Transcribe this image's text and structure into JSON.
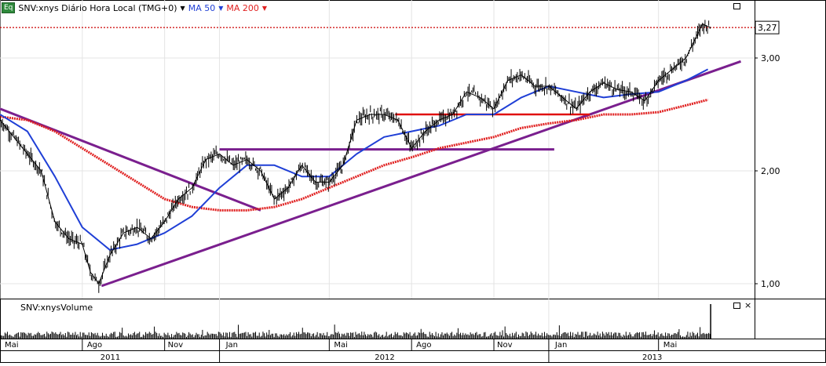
{
  "header": {
    "badge": "Eq",
    "symbol_label": "SNV:xnys Diário Hora Local (TMG+0)",
    "ma50_label": "MA 50",
    "ma200_label": "MA 200"
  },
  "price_tag": "3,27",
  "volume_panel": {
    "title": "SNV:xnysVolume"
  },
  "colors": {
    "ma50": "#1f3fd6",
    "ma200": "#e02020",
    "trendline": "#7a1f8e",
    "resistance": "#e01010",
    "last_price_line": "#cc0000"
  },
  "chart_data": {
    "type": "line",
    "title": "SNV:xnys Diário Hora Local (TMG+0)",
    "x_tick_labels": [
      "Mai",
      "Ago",
      "Nov",
      "Jan",
      "Mai",
      "Ago",
      "Nov",
      "Jan",
      "Mai"
    ],
    "year_labels": [
      "2011",
      "2012",
      "2013"
    ],
    "y_tick_labels": [
      "1,00",
      "2,00",
      "3,00"
    ],
    "y_ticks": [
      1.0,
      2.0,
      3.0
    ],
    "ylim": [
      0.95,
      3.5
    ],
    "x_range_months": [
      0,
      27.5
    ],
    "last_price": 3.27,
    "series": [
      {
        "name": "SNV:xnys",
        "x": [
          0,
          0.5,
          1,
          1.5,
          2,
          2.5,
          3,
          3.3,
          3.6,
          4,
          4.5,
          5,
          5.5,
          6,
          6.5,
          7,
          7.5,
          8,
          8.5,
          9,
          9.5,
          10,
          10.5,
          11,
          11.5,
          12,
          12.5,
          13,
          13.5,
          14,
          14.5,
          15,
          15.5,
          16,
          16.5,
          17,
          17.5,
          18,
          18.5,
          19,
          19.5,
          20,
          20.5,
          21,
          21.5,
          22,
          22.5,
          23,
          23.5,
          24,
          24.5,
          25,
          25.3,
          25.6,
          25.9
        ],
        "values": [
          2.45,
          2.3,
          2.15,
          2.0,
          1.55,
          1.4,
          1.35,
          1.1,
          1.0,
          1.25,
          1.45,
          1.5,
          1.4,
          1.55,
          1.75,
          1.85,
          2.1,
          2.15,
          2.05,
          2.1,
          2.0,
          1.75,
          1.85,
          2.05,
          1.9,
          1.9,
          2.05,
          2.45,
          2.5,
          2.5,
          2.45,
          2.2,
          2.35,
          2.45,
          2.5,
          2.7,
          2.65,
          2.55,
          2.8,
          2.85,
          2.75,
          2.75,
          2.65,
          2.55,
          2.7,
          2.78,
          2.72,
          2.7,
          2.62,
          2.8,
          2.9,
          3.0,
          3.15,
          3.3,
          3.27
        ]
      },
      {
        "name": "MA 50",
        "x": [
          0,
          1,
          2,
          3,
          4,
          5,
          6,
          7,
          8,
          9,
          10,
          11,
          12,
          13,
          14,
          15,
          16,
          17,
          18,
          19,
          20,
          21,
          22,
          23,
          24,
          25,
          25.8
        ],
        "values": [
          2.5,
          2.35,
          1.95,
          1.5,
          1.3,
          1.35,
          1.45,
          1.6,
          1.85,
          2.05,
          2.05,
          1.95,
          1.95,
          2.15,
          2.3,
          2.35,
          2.4,
          2.5,
          2.5,
          2.65,
          2.75,
          2.7,
          2.65,
          2.68,
          2.7,
          2.8,
          2.9
        ]
      },
      {
        "name": "MA 200",
        "x": [
          0,
          1,
          2,
          3,
          4,
          5,
          6,
          7,
          8,
          9,
          10,
          11,
          12,
          13,
          14,
          15,
          16,
          17,
          18,
          19,
          20,
          21,
          22,
          23,
          24,
          25,
          25.8
        ],
        "values": [
          2.48,
          2.45,
          2.35,
          2.2,
          2.05,
          1.9,
          1.75,
          1.68,
          1.65,
          1.65,
          1.68,
          1.75,
          1.85,
          1.95,
          2.05,
          2.12,
          2.2,
          2.25,
          2.3,
          2.38,
          2.42,
          2.45,
          2.5,
          2.5,
          2.52,
          2.58,
          2.63
        ]
      }
    ],
    "annotations": [
      {
        "type": "trendline",
        "x": [
          0,
          9.5
        ],
        "values": [
          2.55,
          1.65
        ]
      },
      {
        "type": "trendline",
        "x": [
          3.7,
          27.0
        ],
        "values": [
          0.98,
          2.97
        ]
      },
      {
        "type": "support",
        "x": [
          8.0,
          20.2
        ],
        "values": [
          2.19,
          2.19
        ]
      },
      {
        "type": "support",
        "x": [
          14.4,
          21.5
        ],
        "values": [
          2.5,
          2.5
        ]
      }
    ],
    "volume": {
      "note": "daily volume bars, mostly low with a spike near the end",
      "spike_at_x": 25.9
    }
  }
}
